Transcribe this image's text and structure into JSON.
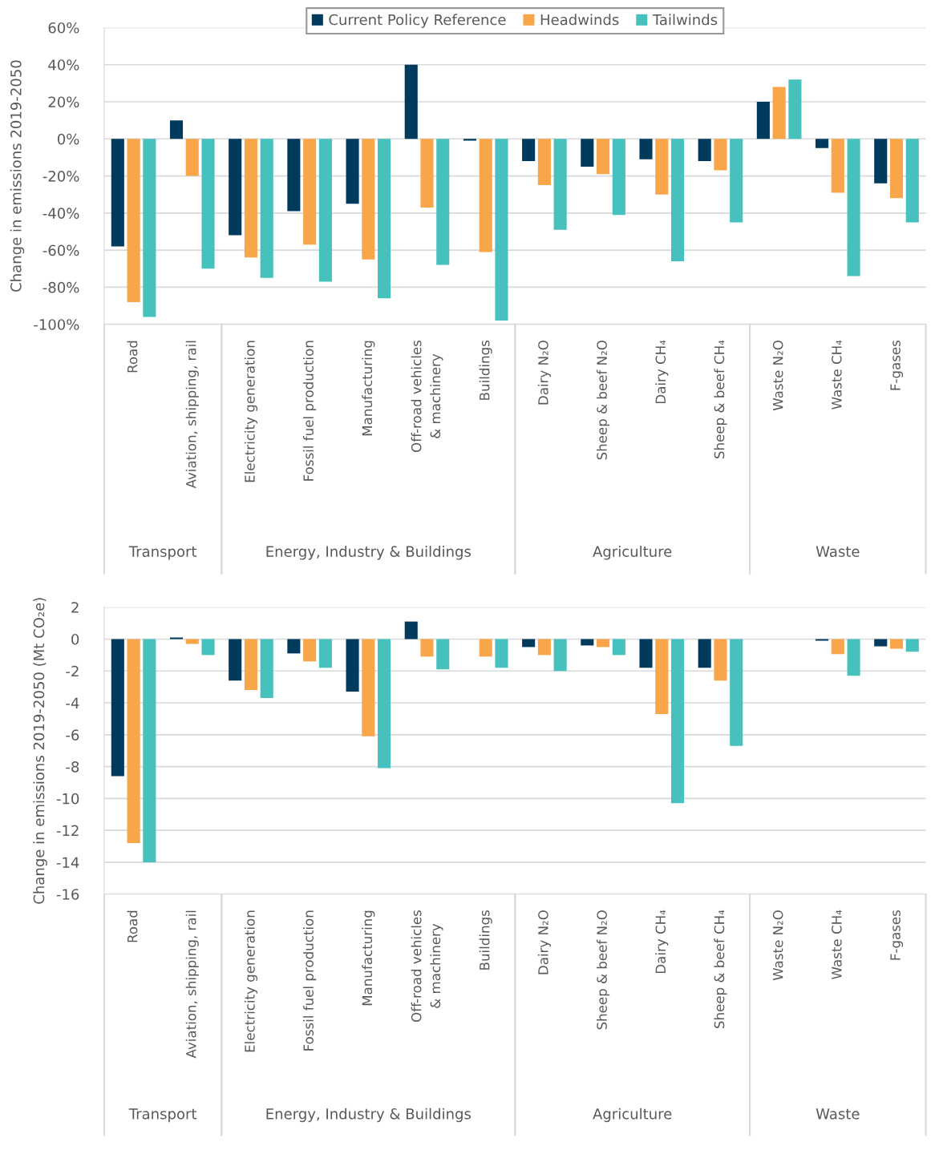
{
  "chart_data": [
    {
      "type": "bar",
      "ylabel": "Change in emissions 2019-2050",
      "categories": [
        "Road",
        "Aviation, shipping, rail",
        "Electricity generation",
        "Fossil fuel production",
        "Manufacturing",
        "Off-road vehicles\n& machinery",
        "Buildings",
        "Dairy N₂O",
        "Sheep & beef N₂O",
        "Dairy CH₄",
        "Sheep & beef CH₄",
        "Waste N₂O",
        "Waste CH₄",
        "F-gases"
      ],
      "series": [
        {
          "name": "Current Policy Reference",
          "color": "#003a5d",
          "values": [
            -58,
            10,
            -52,
            -39,
            -35,
            40,
            -1,
            -12,
            -15,
            -11,
            -12,
            20,
            -5,
            -24
          ]
        },
        {
          "name": "Headwinds",
          "color": "#f9a54a",
          "values": [
            -88,
            -20,
            -64,
            -57,
            -65,
            -37,
            -61,
            -25,
            -19,
            -30,
            -17,
            28,
            -29,
            -32
          ]
        },
        {
          "name": "Tailwinds",
          "color": "#47c1bd",
          "values": [
            -96,
            -70,
            -75,
            -77,
            -86,
            -68,
            -98,
            -49,
            -41,
            -66,
            -45,
            32,
            -74,
            -45
          ]
        }
      ],
      "ylim": [
        -100,
        60
      ],
      "yticks": [
        {
          "value": -100,
          "label": "-100%"
        },
        {
          "value": -80,
          "label": "-80%"
        },
        {
          "value": -60,
          "label": "-60%"
        },
        {
          "value": -40,
          "label": "-40%"
        },
        {
          "value": -20,
          "label": "-20%"
        },
        {
          "value": 0,
          "label": "0%"
        },
        {
          "value": 20,
          "label": "20%"
        },
        {
          "value": 40,
          "label": "40%"
        },
        {
          "value": 60,
          "label": "60%"
        }
      ],
      "grid": "y",
      "legend": "top",
      "annotations": [
        "Transport",
        "Energy, Industry & Buildings",
        "Agriculture",
        "Waste"
      ]
    },
    {
      "type": "bar",
      "ylabel": "Change in emissions 2019-2050 (Mt CO₂e)",
      "categories": [
        "Road",
        "Aviation, shipping, rail",
        "Electricity generation",
        "Fossil fuel production",
        "Manufacturing",
        "Off-road vehicles\n& machinery",
        "Buildings",
        "Dairy N₂O",
        "Sheep & beef N₂O",
        "Dairy CH₄",
        "Sheep & beef CH₄",
        "Waste N₂O",
        "Waste CH₄",
        "F-gases"
      ],
      "series": [
        {
          "color": "#003a5d",
          "values": [
            -8.6,
            0.1,
            -2.6,
            -0.9,
            -3.3,
            1.1,
            0,
            -0.5,
            -0.4,
            -1.8,
            -1.8,
            0,
            -0.1,
            -0.45
          ]
        },
        {
          "color": "#f9a54a",
          "values": [
            -12.8,
            -0.3,
            -3.2,
            -1.4,
            -6.1,
            -1.1,
            -1.1,
            -1.0,
            -0.5,
            -4.7,
            -2.6,
            0,
            -0.95,
            -0.6
          ]
        },
        {
          "color": "#47c1bd",
          "values": [
            -14.0,
            -1.0,
            -3.7,
            -1.8,
            -8.1,
            -1.9,
            -1.8,
            -2.0,
            -1.0,
            -10.3,
            -6.7,
            0,
            -2.3,
            -0.8
          ]
        }
      ],
      "ylim": [
        -16,
        2
      ],
      "yticks": [
        -16,
        -14,
        -12,
        -10,
        -8,
        -6,
        -4,
        -2,
        0,
        2
      ],
      "grid": "y",
      "annotations": [
        "Transport",
        "Energy, Industry & Buildings",
        "Agriculture",
        "Waste"
      ]
    }
  ]
}
